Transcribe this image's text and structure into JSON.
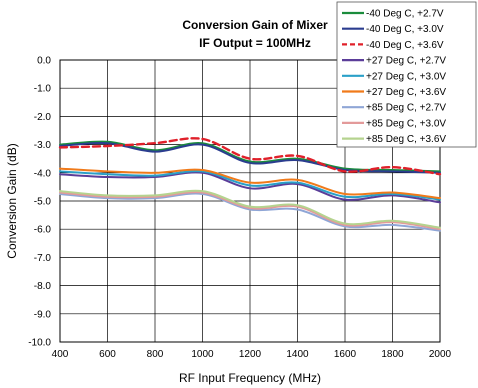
{
  "chart_data": {
    "type": "line",
    "title": "Conversion Gain of Mixer",
    "subtitle": "IF Output = 100MHz",
    "xlabel": "RF Input Frequency (MHz)",
    "ylabel": "Conversion Gain (dB)",
    "xlim": [
      400,
      2000
    ],
    "ylim": [
      -10,
      0
    ],
    "x_ticks": [
      400,
      600,
      800,
      1000,
      1200,
      1400,
      1600,
      1800,
      2000
    ],
    "x_tick_labels": [
      "400",
      "600",
      "800",
      "1000",
      "1200",
      "1400",
      "1600",
      "1800",
      "2000"
    ],
    "y_ticks": [
      0,
      -1,
      -2,
      -3,
      -4,
      -5,
      -6,
      -7,
      -8,
      -9,
      -10
    ],
    "y_tick_labels": [
      "0.0",
      "-1.0",
      "-2.0",
      "-3.0",
      "-4.0",
      "-5.0",
      "-6.0",
      "-7.0",
      "-8.0",
      "-9.0",
      "-10.0"
    ],
    "grid": true,
    "legend_position": "top-right",
    "x": [
      400,
      600,
      800,
      1000,
      1200,
      1400,
      1600,
      1800,
      2000
    ],
    "series": [
      {
        "name": "-40 Deg C, +2.7V",
        "color": "#1a8c3c",
        "dashed": false,
        "values": [
          -3.0,
          -2.9,
          -3.2,
          -2.95,
          -3.6,
          -3.5,
          -3.85,
          -3.9,
          -3.95
        ]
      },
      {
        "name": "-40 Deg C, +3.0V",
        "color": "#2b3d8f",
        "dashed": false,
        "values": [
          -3.05,
          -2.95,
          -3.25,
          -3.0,
          -3.65,
          -3.55,
          -3.9,
          -3.95,
          -4.0
        ]
      },
      {
        "name": "-40 Deg C, +3.6V",
        "color": "#e0202a",
        "dashed": true,
        "values": [
          -3.1,
          -3.05,
          -2.95,
          -2.8,
          -3.5,
          -3.4,
          -3.95,
          -3.8,
          -4.05
        ]
      },
      {
        "name": "+27 Deg C, +2.7V",
        "color": "#5b3d99",
        "dashed": false,
        "values": [
          -4.05,
          -4.15,
          -4.15,
          -4.0,
          -4.55,
          -4.4,
          -4.95,
          -4.8,
          -5.05
        ]
      },
      {
        "name": "+27 Deg C, +3.0V",
        "color": "#2aa0c8",
        "dashed": false,
        "values": [
          -3.95,
          -4.05,
          -4.1,
          -3.95,
          -4.45,
          -4.35,
          -4.85,
          -4.75,
          -4.95
        ]
      },
      {
        "name": "+27 Deg C, +3.6V",
        "color": "#f07a1a",
        "dashed": false,
        "values": [
          -3.85,
          -3.95,
          -4.0,
          -3.9,
          -4.35,
          -4.25,
          -4.75,
          -4.7,
          -4.9
        ]
      },
      {
        "name": "+85 Deg C, +2.7V",
        "color": "#8fa6d6",
        "dashed": false,
        "values": [
          -4.75,
          -4.9,
          -4.9,
          -4.75,
          -5.3,
          -5.3,
          -5.9,
          -5.85,
          -6.05
        ]
      },
      {
        "name": "+85 Deg C, +3.0V",
        "color": "#e39a9a",
        "dashed": false,
        "values": [
          -4.7,
          -4.85,
          -4.85,
          -4.7,
          -5.25,
          -5.2,
          -5.85,
          -5.75,
          -6.0
        ]
      },
      {
        "name": "+85 Deg C, +3.6V",
        "color": "#b5d38f",
        "dashed": false,
        "values": [
          -4.65,
          -4.8,
          -4.8,
          -4.65,
          -5.2,
          -5.15,
          -5.8,
          -5.7,
          -5.95
        ]
      }
    ]
  }
}
